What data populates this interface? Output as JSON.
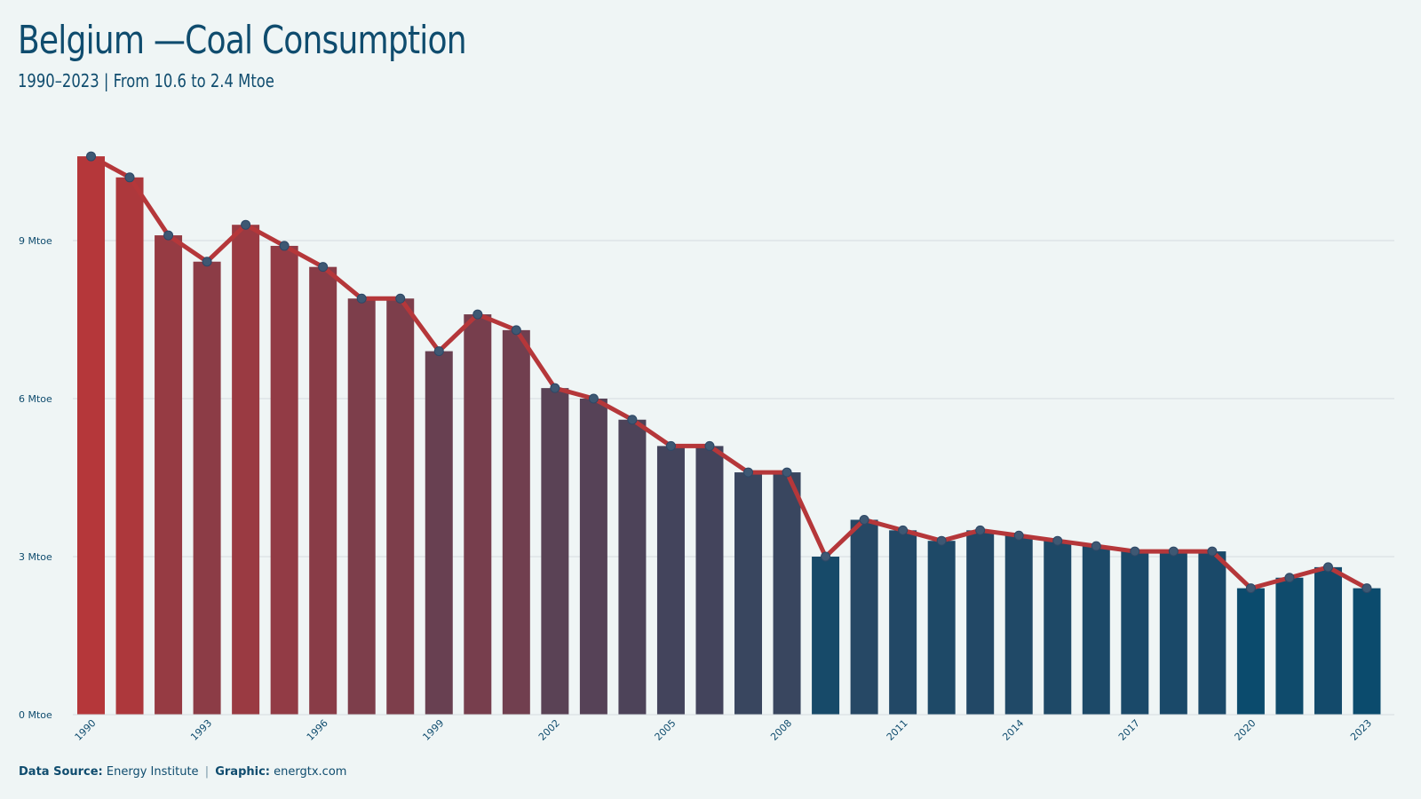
{
  "header": {
    "title": "Belgium —Coal Consumption",
    "subtitle": "1990–2023 | From 10.6 to 2.4 Mtoe"
  },
  "footer": {
    "source_label": "Data Source:",
    "source_value": "Energy Institute",
    "separator": "|",
    "graphic_label": "Graphic:",
    "graphic_value": "energtx.com"
  },
  "colors": {
    "start": "#b5373a",
    "end": "#0b4b6d",
    "line": "#b5373a",
    "marker": "#3e5873",
    "grid": "#d4dcde",
    "text": "#0f4c6e"
  },
  "chart_data": {
    "type": "bar",
    "unit": "Mtoe",
    "x": [
      1990,
      1991,
      1992,
      1993,
      1994,
      1995,
      1996,
      1997,
      1998,
      1999,
      2000,
      2001,
      2002,
      2003,
      2004,
      2005,
      2006,
      2007,
      2008,
      2009,
      2010,
      2011,
      2012,
      2013,
      2014,
      2015,
      2016,
      2017,
      2018,
      2019,
      2020,
      2021,
      2022,
      2023
    ],
    "values": [
      10.6,
      10.2,
      9.1,
      8.6,
      9.3,
      8.9,
      8.5,
      7.9,
      7.9,
      6.9,
      7.6,
      7.3,
      6.2,
      6.0,
      5.6,
      5.1,
      5.1,
      4.6,
      4.6,
      3.0,
      3.7,
      3.5,
      3.3,
      3.5,
      3.4,
      3.3,
      3.2,
      3.1,
      3.1,
      3.1,
      2.4,
      2.6,
      2.8,
      2.4
    ],
    "xticks": [
      "1990",
      "1993",
      "1996",
      "1999",
      "2002",
      "2005",
      "2008",
      "2011",
      "2014",
      "2017",
      "2020",
      "2023"
    ],
    "yticks": [
      {
        "value": 0,
        "label": "0 Mtoe"
      },
      {
        "value": 3,
        "label": "3 Mtoe"
      },
      {
        "value": 6,
        "label": "6 Mtoe"
      },
      {
        "value": 9,
        "label": "9 Mtoe"
      }
    ],
    "ylim": [
      0,
      12
    ],
    "grid": true,
    "overlay": "line with markers"
  }
}
